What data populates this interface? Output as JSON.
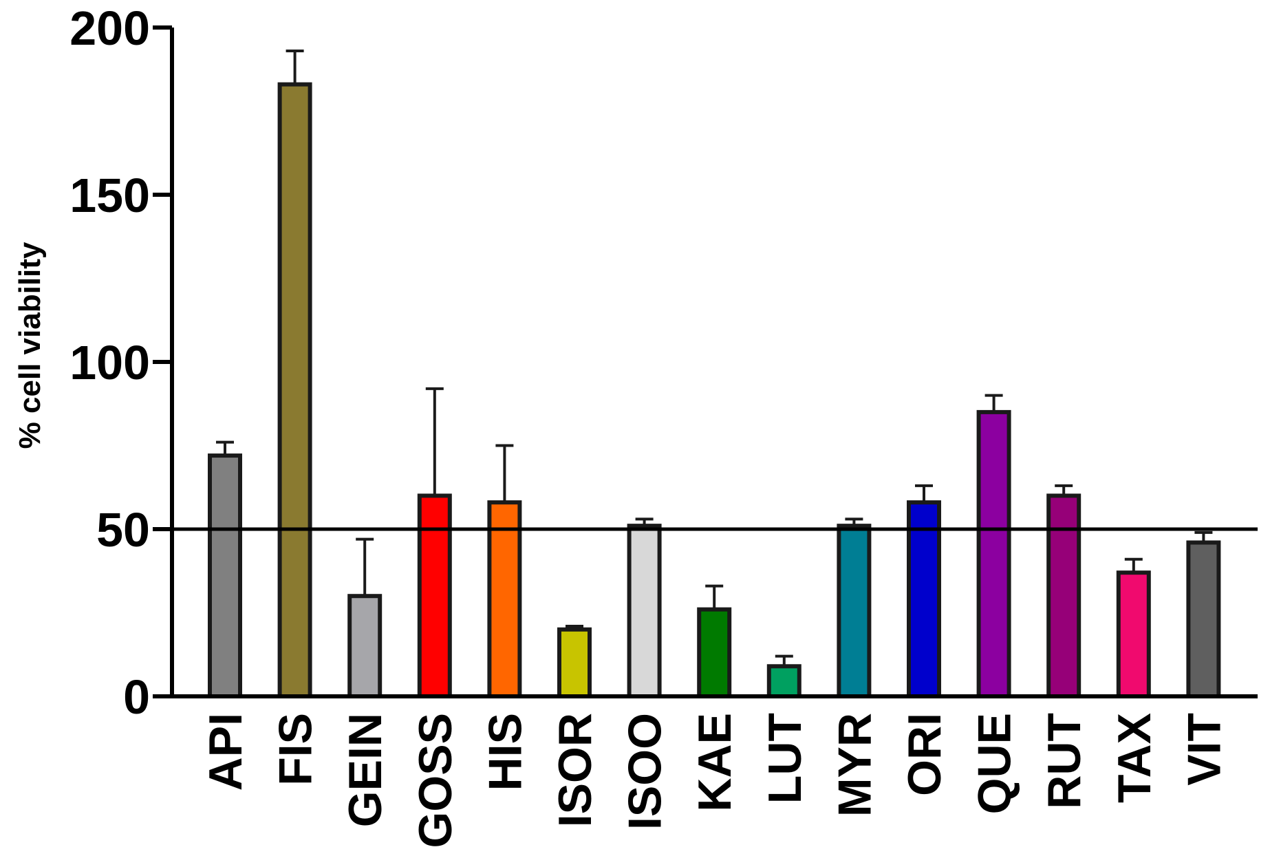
{
  "chart_data": {
    "type": "bar",
    "title": "",
    "xlabel": "",
    "ylabel": "% cell viability",
    "ylim": [
      0,
      200
    ],
    "yticks": [
      0,
      50,
      100,
      150,
      200
    ],
    "reference_line": 50,
    "grid": false,
    "legend": "none",
    "categories": [
      "API",
      "FIS",
      "GEIN",
      "GOSS",
      "HIS",
      "ISOR",
      "ISOO",
      "KAE",
      "LUT",
      "MYR",
      "ORI",
      "QUE",
      "RUT",
      "TAX",
      "VIT"
    ],
    "series": [
      {
        "values": [
          72,
          183,
          30,
          60,
          58,
          20,
          51,
          26,
          9,
          51,
          58,
          85,
          60,
          37,
          46
        ],
        "errors": [
          4,
          10,
          17,
          32,
          17,
          1,
          2,
          7,
          3,
          2,
          5,
          5,
          3,
          4,
          3
        ],
        "colors": [
          "#808080",
          "#8a7a30",
          "#a6a6aa",
          "#ff0000",
          "#ff6600",
          "#c8c400",
          "#d8d8d8",
          "#007a00",
          "#00a060",
          "#007e94",
          "#0000cc",
          "#8c00a0",
          "#960078",
          "#f00a6e",
          "#5f5f5f"
        ]
      }
    ]
  }
}
